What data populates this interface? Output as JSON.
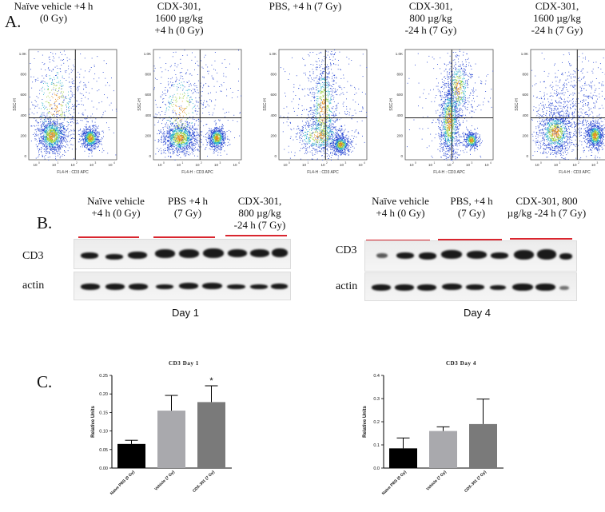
{
  "panel_labels": {
    "a": "A.",
    "b": "B.",
    "c": "C."
  },
  "panel_a": {
    "titles": [
      [
        "Naïve vehicle +4 h",
        "(0 Gy)"
      ],
      [
        "CDX-301,",
        "1600 µg/kg",
        "+4 h (0 Gy)"
      ],
      [
        "PBS, +4 h (7 Gy)"
      ],
      [
        "CDX-301,",
        "800 µg/kg",
        "-24 h (7 Gy)"
      ],
      [
        "CDX-301,",
        "1600 µg/kg",
        "-24 h (7 Gy)"
      ]
    ],
    "y_axis_label": "SSC-H",
    "x_axis_label": "FL4-H : CD3 APC",
    "y_ticks": [
      "1.0K",
      "800",
      "600",
      "400",
      "200",
      "0"
    ],
    "x_ticks": [
      "10",
      "10",
      "10",
      "10",
      "10"
    ],
    "x_tick_exponents": [
      "0",
      "1",
      "2",
      "3",
      "4"
    ]
  },
  "panel_b": {
    "day1": {
      "group_labels": [
        [
          "Naïve vehicle",
          "+4 h (0 Gy)"
        ],
        [
          "PBS +4 h",
          "(7 Gy)"
        ],
        [
          "CDX-301,",
          "800 µg/kg",
          "-24 h (7 Gy)"
        ]
      ],
      "row_labels": [
        "CD3",
        "actin"
      ],
      "day_label": "Day 1"
    },
    "day4": {
      "group_labels": [
        [
          "Naïve vehicle",
          "+4 h (0 Gy)"
        ],
        [
          "PBS, +4 h",
          "(7 Gy)"
        ],
        [
          "CDX-301, 800",
          "µg/kg  -24 h (7 Gy)"
        ]
      ],
      "row_labels": [
        "CD3",
        "actin"
      ],
      "day_label": "Day 4"
    }
  },
  "chart_data": [
    {
      "type": "bar",
      "title": "CD3 Day 1",
      "ylabel": "Relative Units",
      "categories": [
        "Naive PBS (0 Gy)",
        "Vehicle (7 Gy)",
        "CDX-301 (7 Gy)"
      ],
      "values": [
        0.065,
        0.155,
        0.178
      ],
      "errors": [
        0.01,
        0.041,
        0.044
      ],
      "colors": [
        "#000000",
        "#a9a9ad",
        "#7a7a7a"
      ],
      "ylim": [
        0,
        0.25
      ],
      "yticks": [
        "0.00",
        "0.05",
        "0.10",
        "0.15",
        "0.20",
        "0.25"
      ],
      "annotations": [
        "",
        "",
        "*"
      ]
    },
    {
      "type": "bar",
      "title": "CD3 Day 4",
      "ylabel": "Relative Units",
      "categories": [
        "Naive PBS (0 Gy)",
        "Vehicle (7 Gy)",
        "CDX-301 (7 Gy)"
      ],
      "values": [
        0.085,
        0.16,
        0.19
      ],
      "errors": [
        0.045,
        0.018,
        0.108
      ],
      "colors": [
        "#000000",
        "#a9a9ad",
        "#7a7a7a"
      ],
      "ylim": [
        0,
        0.4
      ],
      "yticks": [
        "0.0",
        "0.1",
        "0.2",
        "0.3",
        "0.4"
      ],
      "annotations": [
        "",
        "",
        ""
      ]
    }
  ]
}
